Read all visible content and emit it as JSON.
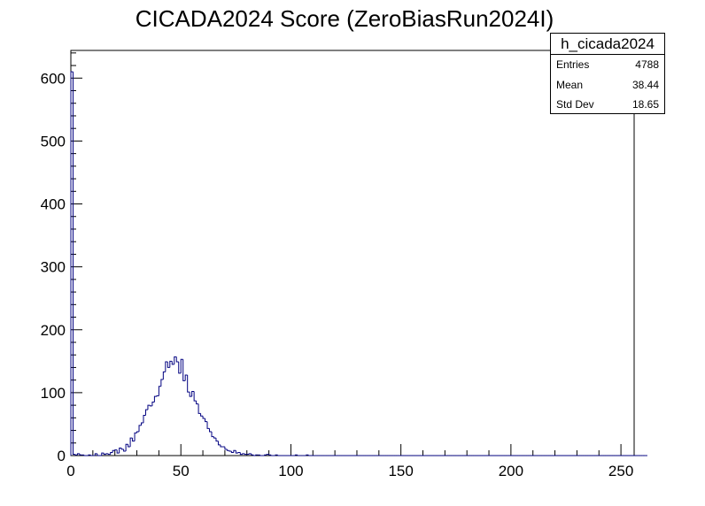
{
  "chart_data": {
    "type": "histogram",
    "title": "CICADA2024 Score (ZeroBiasRun2024I)",
    "xlabel": "",
    "ylabel": "",
    "xlim": [
      0,
      256
    ],
    "ylim": [
      0,
      644
    ],
    "bin_width": 1,
    "x_ticks": [
      0,
      50,
      100,
      150,
      200,
      250
    ],
    "y_ticks": [
      0,
      100,
      200,
      300,
      400,
      500,
      600
    ],
    "line_color": "#000080",
    "grid": false,
    "values": [
      610,
      2,
      1,
      3,
      1,
      1,
      0,
      0,
      1,
      0,
      0,
      3,
      0,
      0,
      4,
      2,
      3,
      2,
      5,
      8,
      9,
      4,
      12,
      10,
      7,
      18,
      14,
      28,
      23,
      36,
      38,
      48,
      52,
      64,
      73,
      80,
      79,
      85,
      94,
      95,
      110,
      121,
      133,
      149,
      140,
      150,
      145,
      157,
      149,
      131,
      153,
      119,
      128,
      101,
      94,
      102,
      87,
      82,
      67,
      63,
      59,
      54,
      43,
      38,
      30,
      28,
      23,
      17,
      14,
      14,
      10,
      8,
      7,
      5,
      8,
      4,
      5,
      2,
      3,
      2,
      2,
      3,
      1,
      0,
      1,
      1,
      0,
      0,
      1,
      2,
      1,
      0,
      0,
      1,
      0,
      0,
      0,
      0,
      0,
      0,
      0,
      0,
      1,
      0,
      0,
      0,
      0,
      1,
      0,
      0,
      0,
      0,
      0,
      0,
      0,
      0,
      0,
      0,
      0,
      0,
      0,
      0,
      0,
      0,
      0,
      0,
      0,
      0,
      0,
      0,
      0,
      0,
      0,
      0,
      0,
      0,
      0,
      0,
      0,
      0,
      0,
      0,
      0,
      0,
      0,
      0,
      0,
      0,
      0,
      0,
      0,
      0,
      0,
      0,
      0,
      0,
      0,
      0,
      0,
      0,
      0,
      0,
      0,
      0,
      0,
      0,
      0,
      0,
      0,
      0,
      0,
      0,
      0,
      0,
      0,
      0,
      0,
      0,
      0,
      0,
      0,
      0,
      0,
      0,
      0,
      0,
      0,
      0,
      0,
      0,
      0,
      0,
      0,
      0,
      0,
      0,
      0,
      0,
      0,
      0,
      0,
      0,
      0,
      0,
      0,
      0,
      0,
      0,
      0,
      0,
      0,
      0,
      0,
      0,
      0,
      0,
      0,
      0,
      0,
      0,
      0,
      0,
      0,
      0,
      0,
      0,
      0,
      0,
      0,
      0,
      0,
      0,
      0,
      0,
      0,
      0,
      0,
      0,
      0,
      0,
      0,
      0,
      0,
      0,
      0,
      0,
      0,
      0,
      0,
      0,
      0,
      0,
      0,
      0,
      0,
      0,
      0,
      0,
      0,
      0,
      0,
      0
    ]
  },
  "stats": {
    "name": "h_cicada2024",
    "entries_label": "Entries",
    "entries_value": "4788",
    "mean_label": "Mean",
    "mean_value": "38.44",
    "stddev_label": "Std Dev",
    "stddev_value": "18.65"
  }
}
